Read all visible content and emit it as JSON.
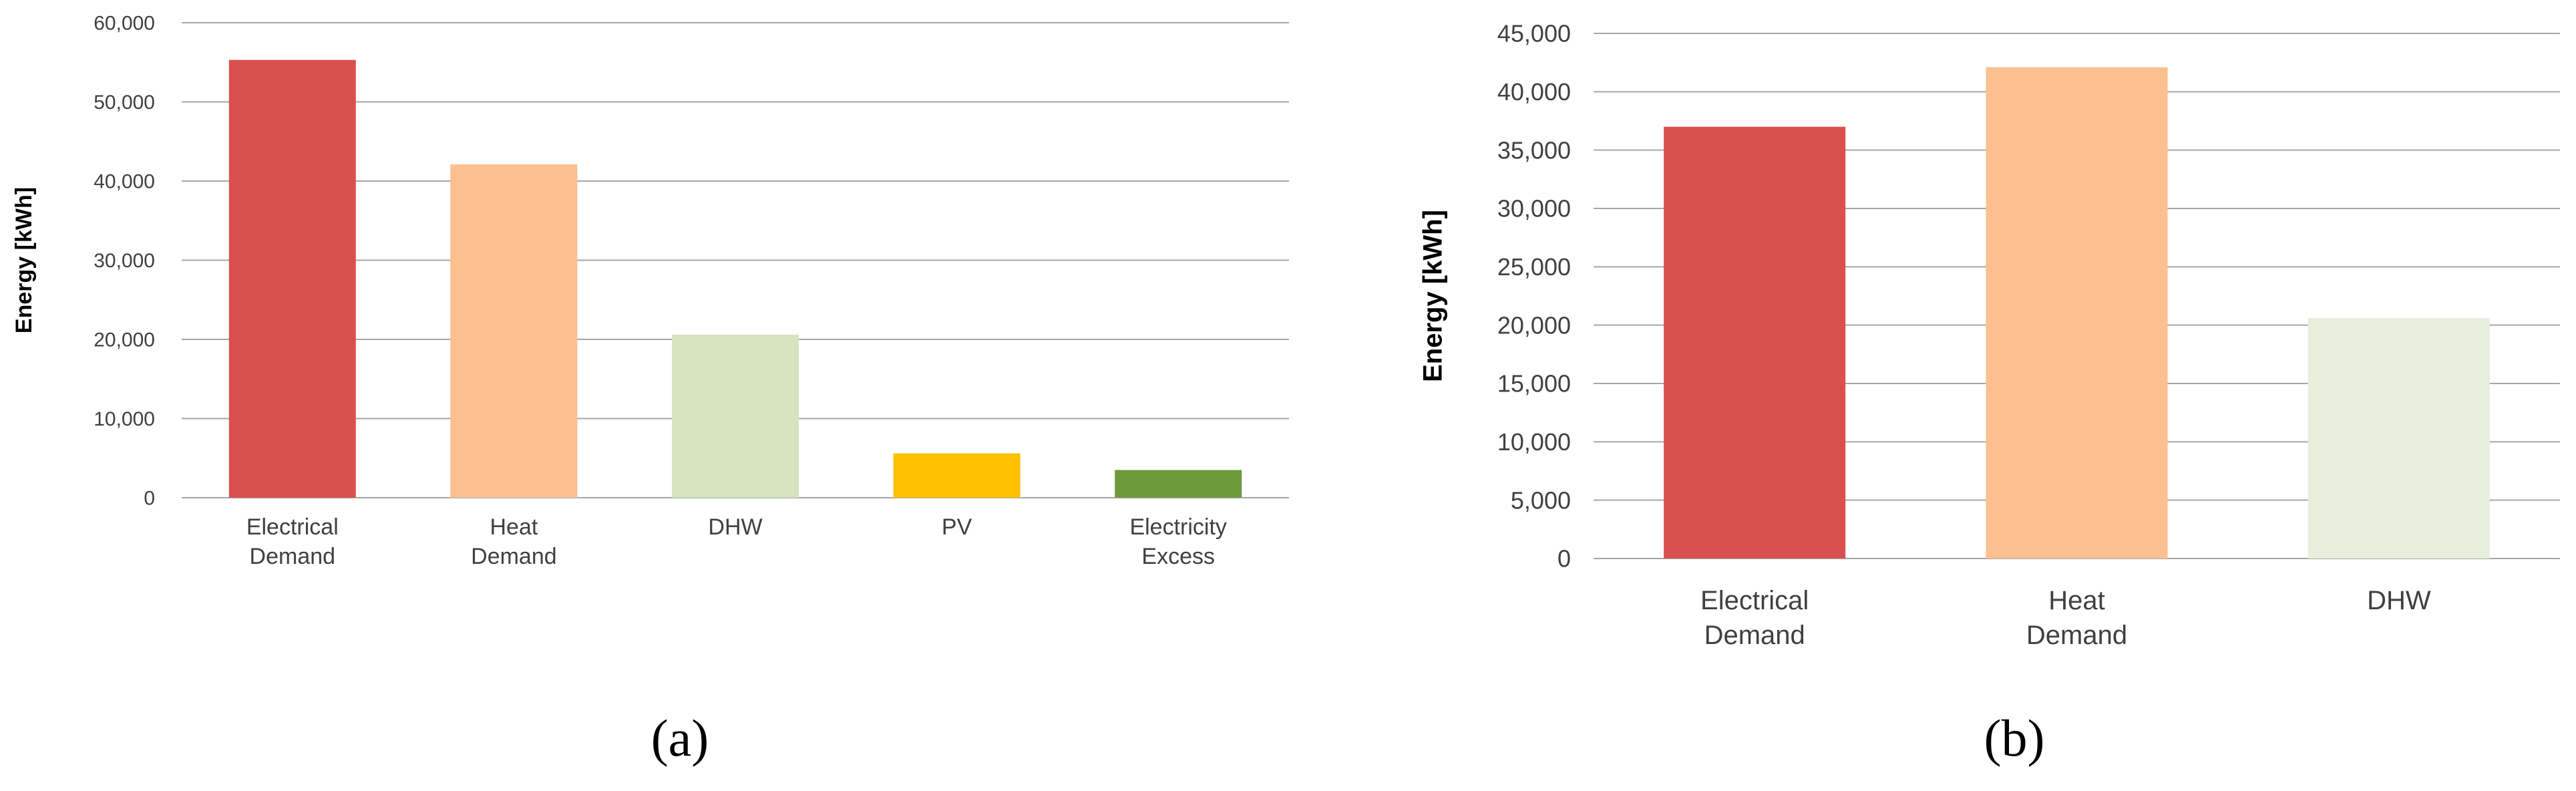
{
  "chart_data": [
    {
      "type": "bar",
      "panel_label": "a",
      "categories": [
        [
          "Electrical",
          "Demand"
        ],
        [
          "Heat",
          "Demand"
        ],
        [
          "DHW"
        ],
        [
          "PV"
        ],
        [
          "Electricity",
          "Excess"
        ]
      ],
      "values": [
        55300,
        42100,
        20600,
        5600,
        3500
      ],
      "colors": [
        "#d9504e",
        "#fbbf90",
        "#d6e4be",
        "#ffc000",
        "#6f9a3a"
      ],
      "ylabel": "Energy [kWh]",
      "ylim": [
        0,
        60000
      ],
      "yticks": [
        0,
        10000,
        20000,
        30000,
        40000,
        50000,
        60000
      ],
      "ytick_labels": [
        "0",
        "10,000",
        "20,000",
        "30,000",
        "40,000",
        "50,000",
        "60,000"
      ],
      "grid": true
    },
    {
      "type": "bar",
      "panel_label": "b",
      "categories": [
        [
          "Electrical",
          "Demand"
        ],
        [
          "Heat",
          "Demand"
        ],
        [
          "DHW"
        ]
      ],
      "values": [
        37000,
        42100,
        20600
      ],
      "colors": [
        "#d9504e",
        "#fbbf90",
        "#e7eedc"
      ],
      "ylabel": "Energy [kWh]",
      "ylim": [
        0,
        45000
      ],
      "yticks": [
        0,
        5000,
        10000,
        15000,
        20000,
        25000,
        30000,
        35000,
        40000,
        45000
      ],
      "ytick_labels": [
        "0",
        "5,000",
        "10,000",
        "15,000",
        "20,000",
        "25,000",
        "30,000",
        "35,000",
        "40,000",
        "45,000"
      ],
      "grid": true
    }
  ]
}
